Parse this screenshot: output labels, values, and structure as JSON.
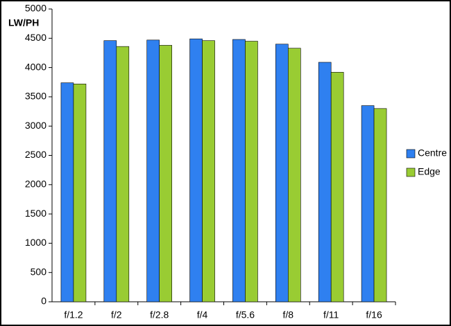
{
  "chart_data": {
    "type": "bar",
    "y_label": "LW/PH",
    "categories": [
      "f/1.2",
      "f/2",
      "f/2.8",
      "f/4",
      "f/5.6",
      "f/8",
      "f/11",
      "f/16"
    ],
    "series": [
      {
        "name": "Centre",
        "color": "#2f80f0",
        "values": [
          3740,
          4460,
          4470,
          4490,
          4480,
          4400,
          4090,
          3350
        ]
      },
      {
        "name": "Edge",
        "color": "#99cc33",
        "values": [
          3720,
          4360,
          4380,
          4460,
          4450,
          4330,
          3920,
          3300
        ]
      }
    ],
    "ylim": [
      0,
      5000
    ],
    "yticks": [
      0,
      500,
      1000,
      1500,
      2000,
      2500,
      3000,
      3500,
      4000,
      4500,
      5000
    ],
    "legend": "right"
  }
}
